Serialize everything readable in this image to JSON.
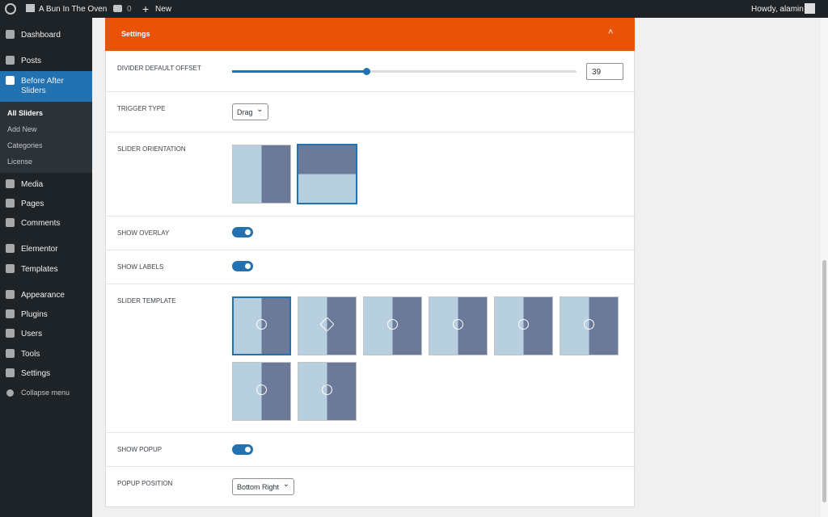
{
  "admin_bar": {
    "site_name": "A Bun In The Oven",
    "comments": "0",
    "new": "New",
    "greeting": "Howdy, alamin"
  },
  "menu": [
    "Dashboard",
    "Posts",
    "Before After Sliders",
    "Media",
    "Pages",
    "Comments",
    "Elementor",
    "Templates",
    "Appearance",
    "Plugins",
    "Users",
    "Tools",
    "Settings"
  ],
  "submenu": [
    "All Sliders",
    "Add New",
    "Categories",
    "License"
  ],
  "collapse": "Collapse menu",
  "panel": {
    "title": "Settings",
    "fields": [
      {
        "label": "DIVIDER DEFAULT OFFSET",
        "value": 39
      },
      {
        "label": "TRIGGER TYPE",
        "value": "Drag"
      },
      {
        "label": "SLIDER ORIENTATION"
      },
      {
        "label": "SHOW OVERLAY"
      },
      {
        "label": "SHOW LABELS"
      },
      {
        "label": "SLIDER TEMPLATE"
      },
      {
        "label": "SHOW POPUP"
      },
      {
        "label": "POPUP POSITION",
        "value": "Bottom Right"
      }
    ]
  }
}
